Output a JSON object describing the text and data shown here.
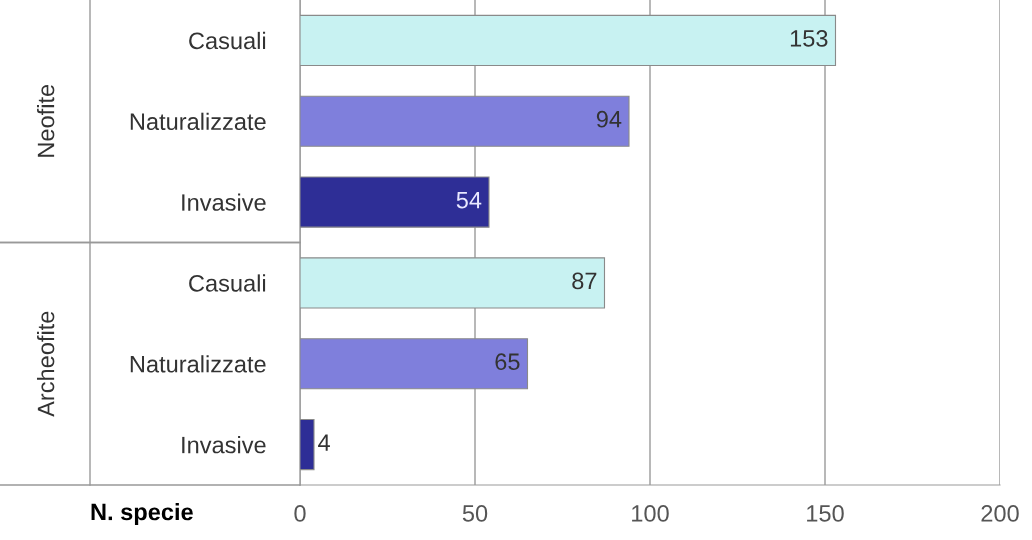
{
  "chart_data": {
    "type": "bar",
    "orientation": "horizontal",
    "xlabel": "N. specie",
    "categories": [
      "Casuali",
      "Naturalizzate",
      "Invasive",
      "Casuali",
      "Naturalizzate",
      "Invasive"
    ],
    "values": [
      153,
      94,
      54,
      87,
      65,
      4
    ],
    "colors": [
      "#c8f2f2",
      "#7f7fdc",
      "#2e2e96",
      "#c8f2f2",
      "#7f7fdc",
      "#2e2e96"
    ],
    "annotations": [
      "Neofite",
      "Archeofite"
    ],
    "xlim": [
      0,
      200
    ],
    "xticks": [
      0,
      50,
      100,
      150,
      200
    ],
    "grid": "x",
    "data_labels": true
  }
}
